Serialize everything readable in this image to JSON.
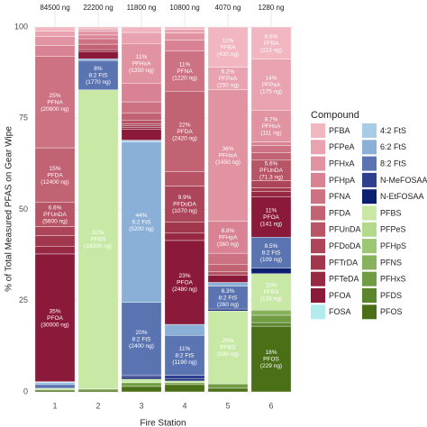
{
  "chart_data": {
    "type": "stacked-bar",
    "x_label": "Fire Station",
    "y_label": "% of Total Measured PFAS on Gear Wipe",
    "legend_title": "Compound",
    "categories": [
      "1",
      "2",
      "3",
      "4",
      "5",
      "6"
    ],
    "bar_totals": [
      "84500 ng",
      "22200 ng",
      "11800 ng",
      "10800 ng",
      "4070 ng",
      "1280 ng"
    ],
    "ylim": [
      0,
      100
    ],
    "yticks": [
      0,
      25,
      50,
      75,
      100
    ],
    "grid": true,
    "series": [
      {
        "name": "PFBA",
        "color": "#f2b6c0",
        "values": [
          1.1,
          0.5,
          1.5,
          0.6,
          11,
          8.8
        ],
        "value_labels": [
          null,
          null,
          null,
          null,
          [
            "11%",
            "PFBA",
            "(430 ng)"
          ],
          [
            "8.8%",
            "PFBA",
            "(113 ng)"
          ]
        ]
      },
      {
        "name": "PFPeA",
        "color": "#e9a3b0",
        "values": [
          1.5,
          0.7,
          3,
          1,
          6.2,
          14
        ],
        "value_labels": [
          null,
          null,
          null,
          null,
          [
            "6.2%",
            "PFPeA",
            "(250 ng)"
          ],
          [
            "14%",
            "PFPeA",
            "(175 ng)"
          ]
        ]
      },
      {
        "name": "PFHxA",
        "color": "#e193a2",
        "values": [
          2.5,
          1,
          11,
          2,
          36,
          8.7
        ],
        "value_labels": [
          null,
          null,
          [
            "11%",
            "PFHxA",
            "(1350 ng)"
          ],
          null,
          [
            "36%",
            "PFHxA",
            "(1450 ng)"
          ],
          [
            "8.7%",
            "PFHxA",
            "(111 ng)"
          ]
        ]
      },
      {
        "name": "PFHpA",
        "color": "#d88293",
        "values": [
          3,
          1,
          5,
          3,
          8.8,
          1
        ],
        "value_labels": [
          null,
          null,
          null,
          null,
          [
            "8.8%",
            "PFHpA",
            "(360 ng)"
          ],
          null
        ]
      },
      {
        "name": "PFNA",
        "color": "#cd7283",
        "values": [
          25,
          1.5,
          3,
          11,
          3,
          2
        ],
        "value_labels": [
          [
            "25%",
            "PFNA",
            "(20800 ng)"
          ],
          null,
          null,
          [
            "11%",
            "PFNA",
            "(1220 ng)"
          ],
          null,
          null
        ]
      },
      {
        "name": "PFDA",
        "color": "#c26374",
        "values": [
          15,
          1.5,
          2,
          22,
          2,
          2
        ],
        "value_labels": [
          [
            "15%",
            "PFDA",
            "(12400 ng)"
          ],
          null,
          null,
          [
            "22%",
            "PFDA",
            "(2420 ng)"
          ],
          null,
          null
        ]
      },
      {
        "name": "PFUnDA",
        "color": "#b75466",
        "values": [
          6.6,
          0,
          1,
          4,
          1,
          5.6
        ],
        "value_labels": [
          [
            "6.6%",
            "PFUnDA",
            "(5600 ng)"
          ],
          null,
          null,
          null,
          null,
          [
            "5.6%",
            "PFUnDA",
            "(71.3 ng)"
          ]
        ]
      },
      {
        "name": "PFDoDA",
        "color": "#ac4559",
        "values": [
          2.5,
          0,
          0.5,
          9.9,
          0,
          2
        ],
        "value_labels": [
          null,
          null,
          null,
          [
            "9.9%",
            "PFDoDA",
            "(1070 ng)"
          ],
          null,
          null
        ]
      },
      {
        "name": "PFTrDA",
        "color": "#a1374d",
        "values": [
          3,
          0,
          0.5,
          3,
          0,
          1
        ]
      },
      {
        "name": "PFTeDA",
        "color": "#962843",
        "values": [
          2,
          0.5,
          0.5,
          2,
          0,
          1.5
        ]
      },
      {
        "name": "PFOA",
        "color": "#8b1a3a",
        "values": [
          35,
          2,
          3,
          23,
          2,
          11
        ],
        "value_labels": [
          [
            "35%",
            "PFOA",
            "(30000 ng)"
          ],
          null,
          null,
          [
            "23%",
            "PFOA",
            "(2480 ng)"
          ],
          null,
          [
            "11%",
            "PFOA",
            "(141 ng)"
          ]
        ]
      },
      {
        "name": "FOSA",
        "color": "#b3ecef",
        "values": [
          0.3,
          0,
          0,
          0,
          0,
          0
        ]
      },
      {
        "name": "4:2 FtS",
        "color": "#a8cbe6",
        "values": [
          0,
          0,
          0.5,
          0,
          0,
          0
        ]
      },
      {
        "name": "6:2 FtS",
        "color": "#8bb0d8",
        "values": [
          0.5,
          0.5,
          44,
          3,
          1,
          0
        ],
        "value_labels": [
          null,
          null,
          [
            "44%",
            "6:2 FtS",
            "(5200 ng)"
          ],
          null,
          null,
          null
        ]
      },
      {
        "name": "8:2 FtS",
        "color": "#5a74b2",
        "values": [
          1,
          8,
          20,
          11,
          6.3,
          8.5
        ],
        "value_labels": [
          null,
          [
            "8%",
            "8:2 FtS",
            "(1770 ng)"
          ],
          [
            "20%",
            "8:2 FtS",
            "(2400 ng)"
          ],
          [
            "11%",
            "8:2 FtS",
            "(1190 ng)"
          ],
          [
            "6.3%",
            "8:2 FtS",
            "(260 ng)"
          ],
          [
            "8.5%",
            "8:2 FtS",
            "(109 ng)"
          ]
        ]
      },
      {
        "name": "N-MeFOSAA",
        "color": "#2d3f8e",
        "values": [
          0,
          0,
          0.5,
          1,
          0,
          0
        ]
      },
      {
        "name": "N-EtFOSAA",
        "color": "#0c1f70",
        "values": [
          0,
          0,
          0.5,
          0.5,
          0.5,
          1.5
        ]
      },
      {
        "name": "PFBS",
        "color": "#c8e8a6",
        "values": [
          0.3,
          82,
          1,
          0.5,
          20,
          10
        ],
        "value_labels": [
          null,
          [
            "82%",
            "PFBS",
            "(18200 ng)"
          ],
          null,
          null,
          [
            "20%",
            "PFBS",
            "(830 ng)"
          ],
          [
            "10%",
            "PFBS",
            "(133 ng)"
          ]
        ]
      },
      {
        "name": "PFPeS",
        "color": "#b3d98b",
        "values": [
          0,
          0,
          0,
          0,
          0,
          0
        ]
      },
      {
        "name": "PFHpS",
        "color": "#9cc874",
        "values": [
          0,
          0,
          0,
          0,
          0,
          0
        ]
      },
      {
        "name": "PFNS",
        "color": "#86b25c",
        "values": [
          0,
          0,
          0,
          0,
          0,
          1.4
        ]
      },
      {
        "name": "PFHxS",
        "color": "#709c44",
        "values": [
          0.2,
          0.3,
          1,
          0.5,
          1.2,
          2
        ]
      },
      {
        "name": "PFDS",
        "color": "#5b862e",
        "values": [
          0,
          0,
          0,
          0,
          0,
          1
        ]
      },
      {
        "name": "PFOS",
        "color": "#4a6f16",
        "values": [
          0.5,
          0.5,
          1.5,
          2,
          1,
          18
        ],
        "value_labels": [
          null,
          null,
          null,
          null,
          null,
          [
            "18%",
            "PFOS",
            "(229 ng)"
          ]
        ]
      }
    ]
  }
}
